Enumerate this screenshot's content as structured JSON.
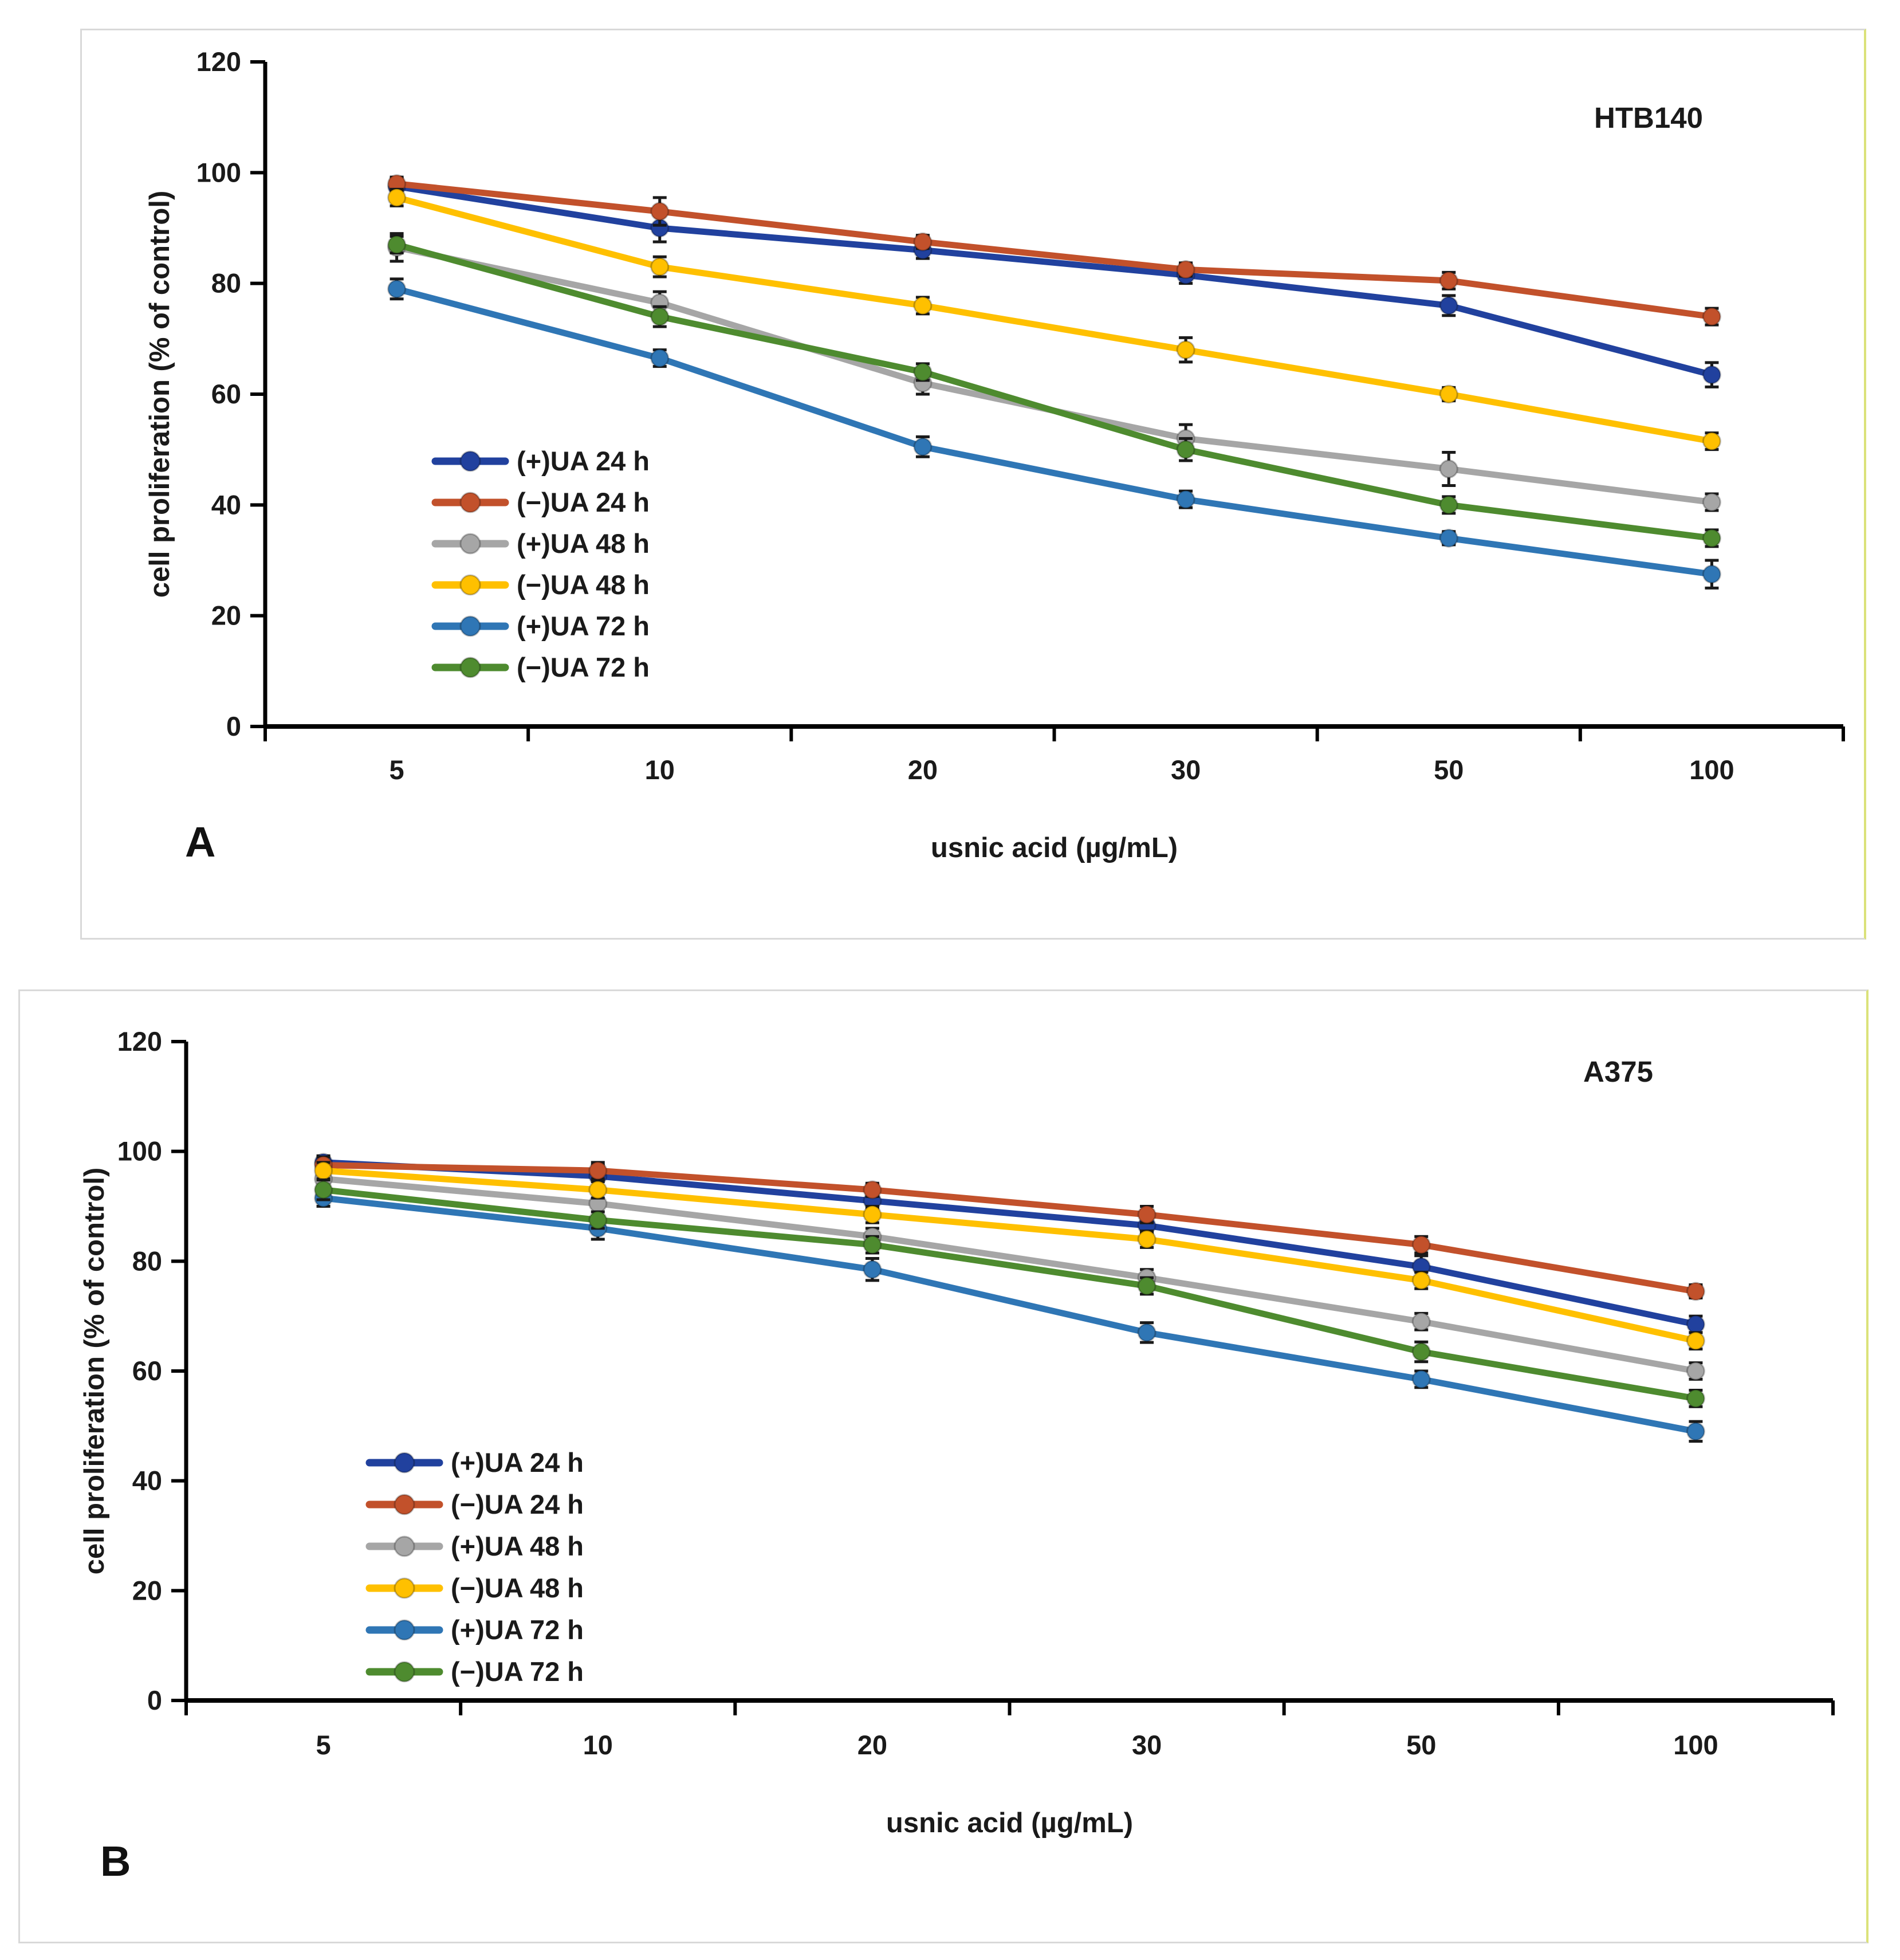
{
  "figure": {
    "description": "Two-panel line figure of usnic acid enantiomer effects on melanoma cell proliferation",
    "panel_count": 2
  },
  "colors": {
    "navy": "#21419E",
    "orange_red": "#C2512B",
    "gray": "#A6A6A6",
    "yellow": "#FFC000",
    "blue": "#2F76B5",
    "green": "#4E8B2F",
    "axis": "#000000",
    "error_bar": "#1A1A1A",
    "text": "#1A1A1A",
    "panel_border": "#D9D9D9",
    "panel_border_accent": "#DBE27A"
  },
  "chart_data": [
    {
      "type": "line",
      "panel_label": "A",
      "title": "HTB140",
      "xlabel": "usnic acid (µg/mL)",
      "ylabel": "cell proliferation (% of control)",
      "categories": [
        "5",
        "10",
        "20",
        "30",
        "50",
        "100"
      ],
      "y_ticks": [
        0,
        20,
        40,
        60,
        80,
        100,
        120
      ],
      "ylim": [
        0,
        120
      ],
      "grid": false,
      "legend_position": "inside-middle-left",
      "series": [
        {
          "name": "(+)UA 24 h",
          "color_key": "navy",
          "values": [
            97.5,
            90,
            86,
            81.5,
            76,
            63.5
          ],
          "errors": [
            1.5,
            2.5,
            1.5,
            1.5,
            1.8,
            2.2
          ]
        },
        {
          "name": "(−)UA 24 h",
          "color_key": "orange_red",
          "values": [
            98,
            93,
            87.5,
            82.5,
            80.5,
            74
          ],
          "errors": [
            1.2,
            2.5,
            1.2,
            1.2,
            1.5,
            1.5
          ]
        },
        {
          "name": "(+)UA 48 h",
          "color_key": "gray",
          "values": [
            86.5,
            76.5,
            62,
            52,
            46.5,
            40.5
          ],
          "errors": [
            2.5,
            2.0,
            2.0,
            2.5,
            3.0,
            1.5
          ]
        },
        {
          "name": "(−)UA 48 h",
          "color_key": "yellow",
          "values": [
            95.5,
            83,
            76,
            68,
            60,
            51.5
          ],
          "errors": [
            1.5,
            1.8,
            1.5,
            2.2,
            1.2,
            1.5
          ]
        },
        {
          "name": "(+)UA 72 h",
          "color_key": "blue",
          "values": [
            79,
            66.5,
            50.5,
            41,
            34,
            27.5
          ],
          "errors": [
            1.8,
            1.5,
            1.8,
            1.5,
            1.2,
            2.5
          ]
        },
        {
          "name": "(−)UA 72 h",
          "color_key": "green",
          "values": [
            87,
            74,
            64,
            50,
            40,
            34
          ],
          "errors": [
            1.5,
            1.8,
            1.5,
            2.0,
            1.5,
            1.5
          ]
        }
      ]
    },
    {
      "type": "line",
      "panel_label": "B",
      "title": "A375",
      "xlabel": "usnic acid (µg/mL)",
      "ylabel": "cell proliferation (% of control)",
      "categories": [
        "5",
        "10",
        "20",
        "30",
        "50",
        "100"
      ],
      "y_ticks": [
        0,
        20,
        40,
        60,
        80,
        100,
        120
      ],
      "ylim": [
        0,
        120
      ],
      "grid": false,
      "legend_position": "inside-middle-left",
      "series": [
        {
          "name": "(+)UA 24 h",
          "color_key": "navy",
          "values": [
            98,
            95.5,
            91,
            86.5,
            79,
            68.5
          ],
          "errors": [
            1.2,
            2.0,
            1.5,
            1.5,
            2.0,
            1.5
          ]
        },
        {
          "name": "(−)UA 24 h",
          "color_key": "orange_red",
          "values": [
            97.5,
            96.5,
            93,
            88.5,
            83,
            74.5
          ],
          "errors": [
            1.5,
            1.5,
            1.2,
            1.5,
            1.5,
            1.2
          ]
        },
        {
          "name": "(+)UA 48 h",
          "color_key": "gray",
          "values": [
            95,
            90.5,
            84.5,
            77,
            69,
            60
          ],
          "errors": [
            2.0,
            3.0,
            1.5,
            1.5,
            1.5,
            1.5
          ]
        },
        {
          "name": "(−)UA 48 h",
          "color_key": "yellow",
          "values": [
            96.5,
            93,
            88.5,
            84,
            76.5,
            65.5
          ],
          "errors": [
            1.5,
            1.5,
            1.5,
            1.5,
            1.5,
            1.5
          ]
        },
        {
          "name": "(+)UA 72 h",
          "color_key": "blue",
          "values": [
            91.5,
            86,
            78.5,
            67,
            58.5,
            49
          ],
          "errors": [
            1.5,
            2.0,
            2.0,
            1.8,
            1.5,
            1.8
          ]
        },
        {
          "name": "(−)UA 72 h",
          "color_key": "green",
          "values": [
            93,
            87.5,
            83,
            75.5,
            63.5,
            55
          ],
          "errors": [
            1.8,
            1.5,
            1.5,
            1.5,
            1.8,
            1.5
          ]
        }
      ]
    }
  ]
}
